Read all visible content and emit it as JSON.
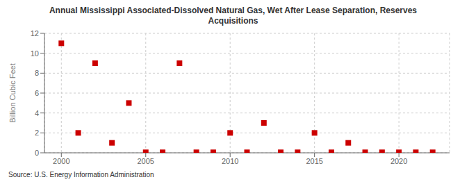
{
  "chart_data": {
    "type": "scatter",
    "title": "Annual Mississippi Associated-Dissolved Natural Gas, Wet After Lease Separation, Reserves\nAcquisitions",
    "ylabel": "Billion Cubic Feet",
    "source": "Source: U.S. Energy Information Administration",
    "x": [
      2000,
      2001,
      2002,
      2003,
      2004,
      2005,
      2006,
      2007,
      2008,
      2009,
      2010,
      2011,
      2012,
      2013,
      2014,
      2015,
      2016,
      2017,
      2018,
      2019,
      2020,
      2021,
      2022
    ],
    "values": [
      11.0,
      2.0,
      9.0,
      1.0,
      5.0,
      0.05,
      0.05,
      9.0,
      0.05,
      0.05,
      2.0,
      0.05,
      3.0,
      0.05,
      0.05,
      2.0,
      0.05,
      1.0,
      0.05,
      0.05,
      0.05,
      0.05,
      0.05
    ],
    "color": "#cc0000",
    "marker": "square",
    "xlim": [
      1999,
      2023
    ],
    "ylim": [
      0,
      12
    ],
    "xticks": [
      2000,
      2005,
      2010,
      2015,
      2020
    ],
    "yticks": [
      0,
      2,
      4,
      6,
      8,
      10,
      12
    ],
    "grid": true
  }
}
